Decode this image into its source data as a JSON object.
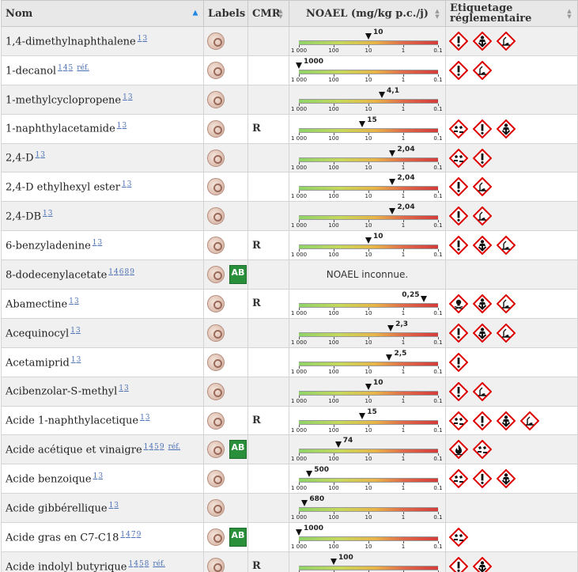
{
  "columns": {
    "name": "Nom",
    "labels": "Labels",
    "cmr": "CMR",
    "noael": "NOAEL (mg/kg p.c./j)",
    "etiquetage": "Etiquetage réglementaire"
  },
  "scale_labels": [
    "1 000",
    "100",
    "10",
    "1",
    "0.1"
  ],
  "noael_unknown_text": "NOAEL inconnue.",
  "ab_text": "AB",
  "ref_text": "réf.",
  "rows": [
    {
      "name": "1,4-dimethylnaphthalene",
      "refs": "13",
      "has_ref": false,
      "bio": false,
      "cmr": "",
      "noael": 10,
      "noael_label": "10",
      "ghs": [
        "exclamation-icon",
        "health-hazard-icon",
        "environment-icon"
      ]
    },
    {
      "name": "1-decanol",
      "refs": "145",
      "has_ref": true,
      "bio": false,
      "cmr": "",
      "noael": 1000,
      "noael_label": "1000",
      "ghs": [
        "exclamation-icon",
        "environment-icon"
      ]
    },
    {
      "name": "1-methylcyclopropene",
      "refs": "13",
      "has_ref": false,
      "bio": false,
      "cmr": "",
      "noael": 4.1,
      "noael_label": "4,1",
      "ghs": []
    },
    {
      "name": "1-naphthylacetamide",
      "refs": "13",
      "has_ref": false,
      "bio": false,
      "cmr": "R",
      "noael": 15,
      "noael_label": "15",
      "ghs": [
        "corrosion-icon",
        "exclamation-icon",
        "health-hazard-icon"
      ]
    },
    {
      "name": "2,4-D",
      "refs": "13",
      "has_ref": false,
      "bio": false,
      "cmr": "",
      "noael": 2.04,
      "noael_label": "2,04",
      "ghs": [
        "corrosion-icon",
        "exclamation-icon"
      ]
    },
    {
      "name": "2,4-D ethylhexyl ester",
      "refs": "13",
      "has_ref": false,
      "bio": false,
      "cmr": "",
      "noael": 2.04,
      "noael_label": "2,04",
      "ghs": [
        "exclamation-icon",
        "environment-icon"
      ]
    },
    {
      "name": "2,4-DB",
      "refs": "13",
      "has_ref": false,
      "bio": false,
      "cmr": "",
      "noael": 2.04,
      "noael_label": "2,04",
      "ghs": [
        "exclamation-icon",
        "environment-icon"
      ]
    },
    {
      "name": "6-benzyladenine",
      "refs": "13",
      "has_ref": false,
      "bio": false,
      "cmr": "R",
      "noael": 10,
      "noael_label": "10",
      "ghs": [
        "exclamation-icon",
        "health-hazard-icon",
        "environment-icon"
      ]
    },
    {
      "name": "8-dodecenylacetate",
      "refs": "14689",
      "has_ref": false,
      "bio": true,
      "cmr": "",
      "noael": null,
      "noael_label": "",
      "ghs": []
    },
    {
      "name": "Abamectine",
      "refs": "13",
      "has_ref": false,
      "bio": false,
      "cmr": "R",
      "noael": 0.25,
      "noael_label": "0,25",
      "ghs": [
        "skull-icon",
        "health-hazard-icon",
        "environment-icon"
      ]
    },
    {
      "name": "Acequinocyl",
      "refs": "13",
      "has_ref": false,
      "bio": false,
      "cmr": "",
      "noael": 2.3,
      "noael_label": "2,3",
      "ghs": [
        "exclamation-icon",
        "health-hazard-icon",
        "environment-icon"
      ]
    },
    {
      "name": "Acetamiprid",
      "refs": "13",
      "has_ref": false,
      "bio": false,
      "cmr": "",
      "noael": 2.5,
      "noael_label": "2,5",
      "ghs": [
        "exclamation-icon"
      ]
    },
    {
      "name": "Acibenzolar-S-methyl",
      "refs": "13",
      "has_ref": false,
      "bio": false,
      "cmr": "",
      "noael": 10,
      "noael_label": "10",
      "ghs": [
        "exclamation-icon",
        "environment-icon"
      ]
    },
    {
      "name": "Acide 1-naphthylacetique",
      "refs": "13",
      "has_ref": false,
      "bio": false,
      "cmr": "R",
      "noael": 15,
      "noael_label": "15",
      "ghs": [
        "corrosion-icon",
        "exclamation-icon",
        "health-hazard-icon",
        "environment-icon"
      ]
    },
    {
      "name": "Acide acétique et vinaigre",
      "refs": "1459",
      "has_ref": true,
      "bio": true,
      "cmr": "",
      "noael": 74,
      "noael_label": "74",
      "ghs": [
        "flame-icon",
        "corrosion-icon"
      ]
    },
    {
      "name": "Acide benzoique",
      "refs": "13",
      "has_ref": false,
      "bio": false,
      "cmr": "",
      "noael": 500,
      "noael_label": "500",
      "ghs": [
        "corrosion-icon",
        "exclamation-icon",
        "health-hazard-icon"
      ]
    },
    {
      "name": "Acide gibbérellique",
      "refs": "13",
      "has_ref": false,
      "bio": false,
      "cmr": "",
      "noael": 680,
      "noael_label": "680",
      "ghs": []
    },
    {
      "name": "Acide gras en C7-C18",
      "refs": "1479",
      "has_ref": false,
      "bio": true,
      "cmr": "",
      "noael": 1000,
      "noael_label": "1000",
      "ghs": [
        "corrosion-icon"
      ]
    },
    {
      "name": "Acide indolyl butyrique",
      "refs": "1458",
      "has_ref": true,
      "bio": false,
      "cmr": "R",
      "noael": 100,
      "noael_label": "100",
      "ghs": [
        "exclamation-icon",
        "health-hazard-icon"
      ]
    }
  ]
}
